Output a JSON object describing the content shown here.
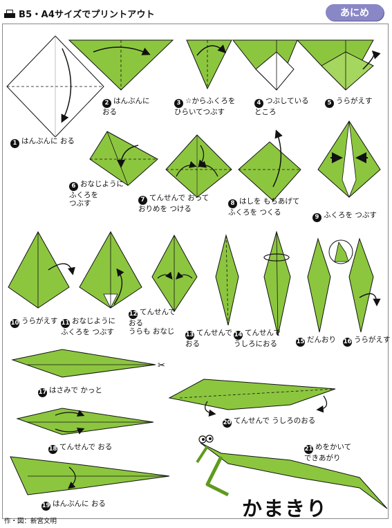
{
  "header": {
    "print_note": "B5・A4サイズでプリントアウト"
  },
  "badge": {
    "label": "あにめ"
  },
  "steps": [
    {
      "num": "1",
      "text": "はんぶんに おる"
    },
    {
      "num": "2",
      "text": "はんぶんに\nおる"
    },
    {
      "num": "3",
      "text": "☆からふくろを\nひらいてつぶす"
    },
    {
      "num": "4",
      "text": "つぶしている\nところ"
    },
    {
      "num": "5",
      "text": "うらがえす"
    },
    {
      "num": "6",
      "text": "おなじように\nふくろを\nつぶす"
    },
    {
      "num": "7",
      "text": "てんせんで おって\nおりめを つける"
    },
    {
      "num": "8",
      "text": "はしを もちあげて\nふくろを つくる"
    },
    {
      "num": "9",
      "text": "ふくろを つぶす"
    },
    {
      "num": "10",
      "text": "うらがえす"
    },
    {
      "num": "11",
      "text": "おなじように\nふくろを つぶす"
    },
    {
      "num": "12",
      "text": "てんせんで\nおる\nうらも おなじ"
    },
    {
      "num": "13",
      "text": "てんせんで\nおる"
    },
    {
      "num": "14",
      "text": "てんせんで\nうしろにおる"
    },
    {
      "num": "15",
      "text": "だんおり"
    },
    {
      "num": "16",
      "text": "うらがえす"
    },
    {
      "num": "17",
      "text": "はさみで かっと"
    },
    {
      "num": "18",
      "text": "てんせんで おる"
    },
    {
      "num": "19",
      "text": "はんぶんに おる"
    },
    {
      "num": "20",
      "text": "てんせんで うしろのおる"
    },
    {
      "num": "21",
      "text": "めをかいて\nできあがり"
    }
  ],
  "title": "かまきり",
  "credit": "作・図：新宮文明",
  "colors": {
    "paper": "#8cc63f",
    "paper_dark": "#5f9a1e",
    "badge": "#8a87c6"
  }
}
